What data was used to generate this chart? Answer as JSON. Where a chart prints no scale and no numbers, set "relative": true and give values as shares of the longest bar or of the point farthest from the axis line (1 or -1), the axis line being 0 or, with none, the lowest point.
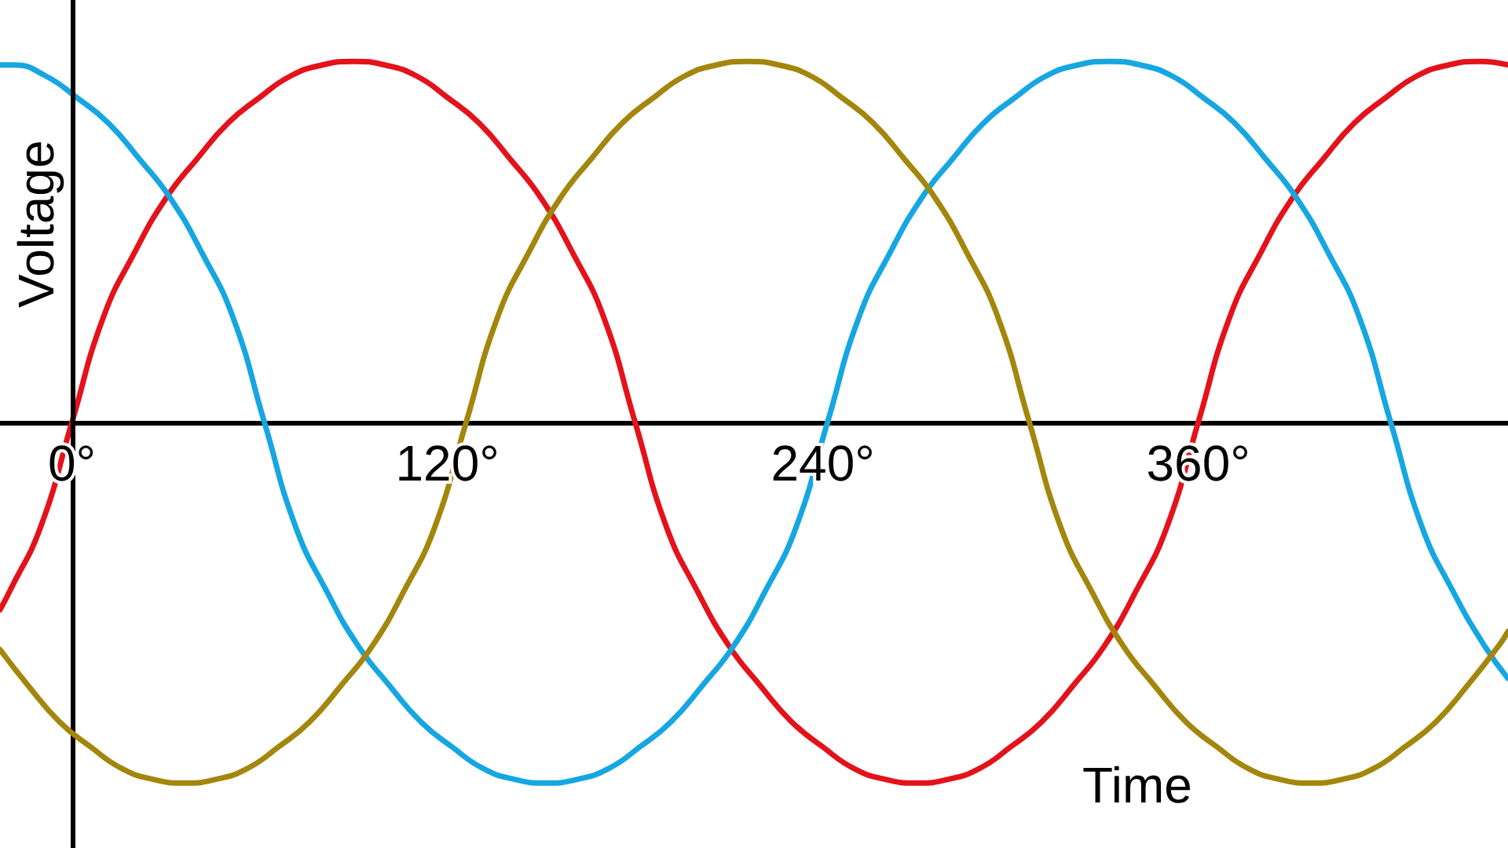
{
  "chart_data": {
    "type": "line",
    "xlabel": "Time",
    "ylabel": "Voltage",
    "relative": true,
    "xlim": [
      -23,
      459
    ],
    "xticks": [
      {
        "value": 0,
        "label": "0°"
      },
      {
        "value": 120,
        "label": "120°"
      },
      {
        "value": 240,
        "label": "240°"
      },
      {
        "value": 360,
        "label": "360°"
      }
    ],
    "marker": "none",
    "line_style": "solid",
    "ref_lines": [
      {
        "axis": "x",
        "value": 0,
        "color": "#000000"
      }
    ],
    "series": [
      {
        "color": "#e3121b",
        "x": [
          -23,
          -20,
          -10,
          0,
          10,
          20,
          30,
          40,
          50,
          60,
          70,
          80,
          90,
          100,
          110,
          120,
          130,
          140,
          150,
          160,
          170,
          180,
          190,
          200,
          210,
          220,
          230,
          240,
          250,
          260,
          270,
          280,
          290,
          300,
          310,
          320,
          330,
          340,
          350,
          360,
          370,
          380,
          390,
          400,
          410,
          420,
          430,
          440,
          450,
          459
        ],
        "values": [
          -0.52,
          -0.47,
          -0.29,
          0,
          0.29,
          0.47,
          0.62,
          0.73,
          0.83,
          0.9,
          0.96,
          0.99,
          1,
          0.99,
          0.96,
          0.9,
          0.83,
          0.73,
          0.62,
          0.47,
          0.29,
          0,
          -0.29,
          -0.47,
          -0.62,
          -0.73,
          -0.83,
          -0.9,
          -0.96,
          -0.99,
          -1,
          -0.99,
          -0.96,
          -0.9,
          -0.83,
          -0.73,
          -0.62,
          -0.47,
          -0.29,
          0,
          0.29,
          0.47,
          0.62,
          0.73,
          0.83,
          0.9,
          0.96,
          0.99,
          1,
          0.99
        ]
      },
      {
        "color": "#16a6e1",
        "x": [
          -23,
          -18.5,
          -8.5,
          1.5,
          11.5,
          21.5,
          31.5,
          41.5,
          51.5,
          61.5,
          71.5,
          81.5,
          91.5,
          101.5,
          111.5,
          121.5,
          131.5,
          141.5,
          151.5,
          161.5,
          171.5,
          181.5,
          191.5,
          201.5,
          211.5,
          221.5,
          231.5,
          241.5,
          251.5,
          261.5,
          271.5,
          281.5,
          291.5,
          301.5,
          311.5,
          321.5,
          331.5,
          341.5,
          351.5,
          361.5,
          371.5,
          381.5,
          391.5,
          401.5,
          411.5,
          421.5,
          431.5,
          441.5,
          451.5,
          459
        ],
        "values": [
          0.99,
          0.99,
          0.96,
          0.9,
          0.83,
          0.73,
          0.62,
          0.47,
          0.29,
          0,
          -0.29,
          -0.47,
          -0.62,
          -0.73,
          -0.83,
          -0.9,
          -0.96,
          -0.99,
          -1,
          -0.99,
          -0.96,
          -0.9,
          -0.83,
          -0.73,
          -0.62,
          -0.47,
          -0.29,
          0,
          0.29,
          0.47,
          0.62,
          0.73,
          0.83,
          0.9,
          0.96,
          0.99,
          1,
          0.99,
          0.96,
          0.9,
          0.83,
          0.73,
          0.62,
          0.47,
          0.29,
          0,
          -0.29,
          -0.47,
          -0.62,
          -0.71
        ]
      },
      {
        "color": "#a3860c",
        "x": [
          -23,
          -14,
          -4,
          6,
          16,
          26,
          36,
          46,
          56,
          66,
          76,
          86,
          96,
          106,
          116,
          126,
          136,
          146,
          156,
          166,
          176,
          186,
          196,
          206,
          216,
          226,
          236,
          246,
          256,
          266,
          276,
          286,
          296,
          306,
          316,
          326,
          336,
          346,
          356,
          366,
          376,
          386,
          396,
          406,
          416,
          426,
          436,
          446,
          456,
          459
        ],
        "values": [
          -0.63,
          -0.73,
          -0.83,
          -0.9,
          -0.96,
          -0.99,
          -1,
          -0.99,
          -0.96,
          -0.9,
          -0.83,
          -0.73,
          -0.62,
          -0.47,
          -0.29,
          0,
          0.29,
          0.47,
          0.62,
          0.73,
          0.83,
          0.9,
          0.96,
          0.99,
          1,
          0.99,
          0.96,
          0.9,
          0.83,
          0.73,
          0.62,
          0.47,
          0.29,
          0,
          -0.29,
          -0.47,
          -0.62,
          -0.73,
          -0.83,
          -0.9,
          -0.96,
          -0.99,
          -1,
          -0.99,
          -0.96,
          -0.9,
          -0.83,
          -0.73,
          -0.62,
          -0.58
        ]
      }
    ]
  }
}
